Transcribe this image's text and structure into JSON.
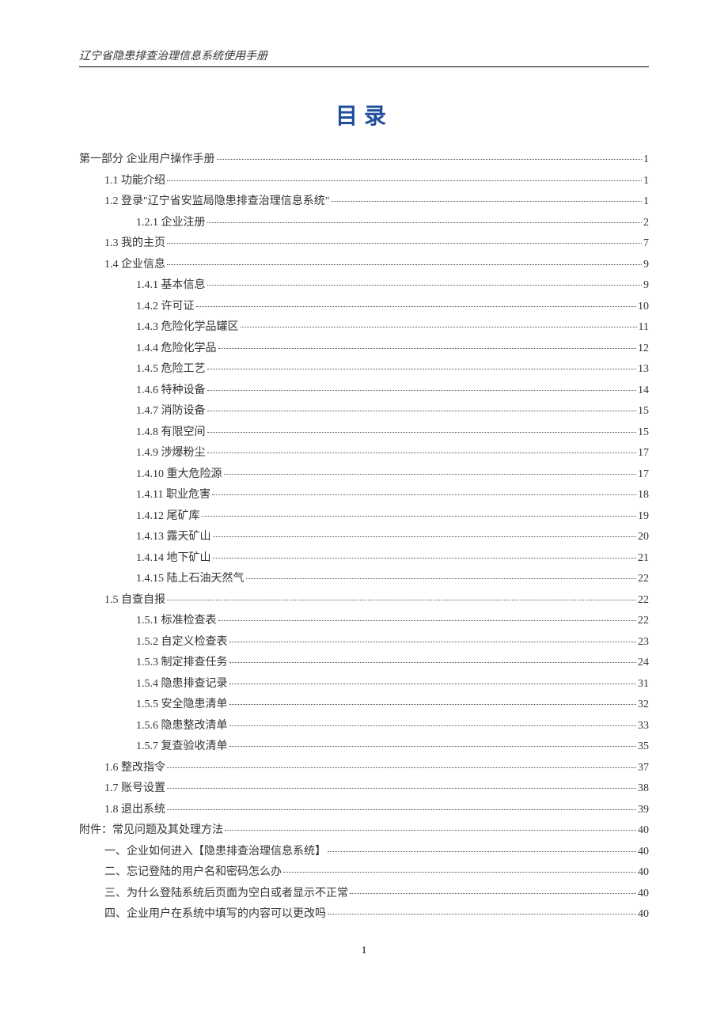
{
  "header": "辽宁省隐患排查治理信息系统使用手册",
  "title": "目录",
  "page_number": "1",
  "toc": [
    {
      "label": "第一部分 企业用户操作手册",
      "page": "1",
      "indent": 0
    },
    {
      "label": "1.1 功能介绍",
      "page": "1",
      "indent": 1
    },
    {
      "label": "1.2 登录\"辽宁省安监局隐患排查治理信息系统\"",
      "page": "1",
      "indent": 1
    },
    {
      "label": "1.2.1 企业注册",
      "page": "2",
      "indent": 2
    },
    {
      "label": "1.3  我的主页",
      "page": "7",
      "indent": 1
    },
    {
      "label": "1.4 企业信息",
      "page": "9",
      "indent": 1
    },
    {
      "label": "1.4.1 基本信息",
      "page": "9",
      "indent": 2
    },
    {
      "label": "1.4.2 许可证",
      "page": "10",
      "indent": 2
    },
    {
      "label": "1.4.3 危险化学品罐区",
      "page": "11",
      "indent": 2
    },
    {
      "label": "1.4.4 危险化学品",
      "page": "12",
      "indent": 2
    },
    {
      "label": "1.4.5 危险工艺",
      "page": "13",
      "indent": 2
    },
    {
      "label": "1.4.6 特种设备",
      "page": "14",
      "indent": 2
    },
    {
      "label": "1.4.7 消防设备",
      "page": "15",
      "indent": 2
    },
    {
      "label": "1.4.8 有限空间",
      "page": "15",
      "indent": 2
    },
    {
      "label": "1.4.9 涉爆粉尘",
      "page": "17",
      "indent": 2
    },
    {
      "label": "1.4.10 重大危险源",
      "page": "17",
      "indent": 2
    },
    {
      "label": "1.4.11 职业危害",
      "page": "18",
      "indent": 2
    },
    {
      "label": "1.4.12 尾矿库",
      "page": "19",
      "indent": 2
    },
    {
      "label": "1.4.13 露天矿山",
      "page": "20",
      "indent": 2
    },
    {
      "label": "1.4.14 地下矿山",
      "page": "21",
      "indent": 2
    },
    {
      "label": "1.4.15 陆上石油天然气",
      "page": "22",
      "indent": 2
    },
    {
      "label": "1.5 自查自报",
      "page": "22",
      "indent": 1
    },
    {
      "label": "1.5.1 标准检查表",
      "page": "22",
      "indent": 2
    },
    {
      "label": "1.5.2 自定义检查表",
      "page": "23",
      "indent": 2
    },
    {
      "label": "1.5.3 制定排查任务",
      "page": "24",
      "indent": 2
    },
    {
      "label": "1.5.4 隐患排查记录",
      "page": "31",
      "indent": 2
    },
    {
      "label": "1.5.5 安全隐患清单",
      "page": "32",
      "indent": 2
    },
    {
      "label": "1.5.6 隐患整改清单",
      "page": "33",
      "indent": 2
    },
    {
      "label": "1.5.7 复查验收清单",
      "page": "35",
      "indent": 2
    },
    {
      "label": "1.6 整改指令",
      "page": "37",
      "indent": 1
    },
    {
      "label": "1.7 账号设置",
      "page": "38",
      "indent": 1
    },
    {
      "label": "1.8 退出系统",
      "page": "39",
      "indent": 1
    },
    {
      "label": "附件：常见问题及其处理方法",
      "page": "40",
      "indent": 0
    },
    {
      "label": "一、企业如何进入【隐患排查治理信息系统】",
      "page": "40",
      "indent": 1
    },
    {
      "label": "二、忘记登陆的用户名和密码怎么办",
      "page": "40",
      "indent": 1
    },
    {
      "label": "三、为什么登陆系统后页面为空白或者显示不正常",
      "page": "40",
      "indent": 1
    },
    {
      "label": "四、企业用户在系统中填写的内容可以更改吗",
      "page": "40",
      "indent": 1
    }
  ]
}
